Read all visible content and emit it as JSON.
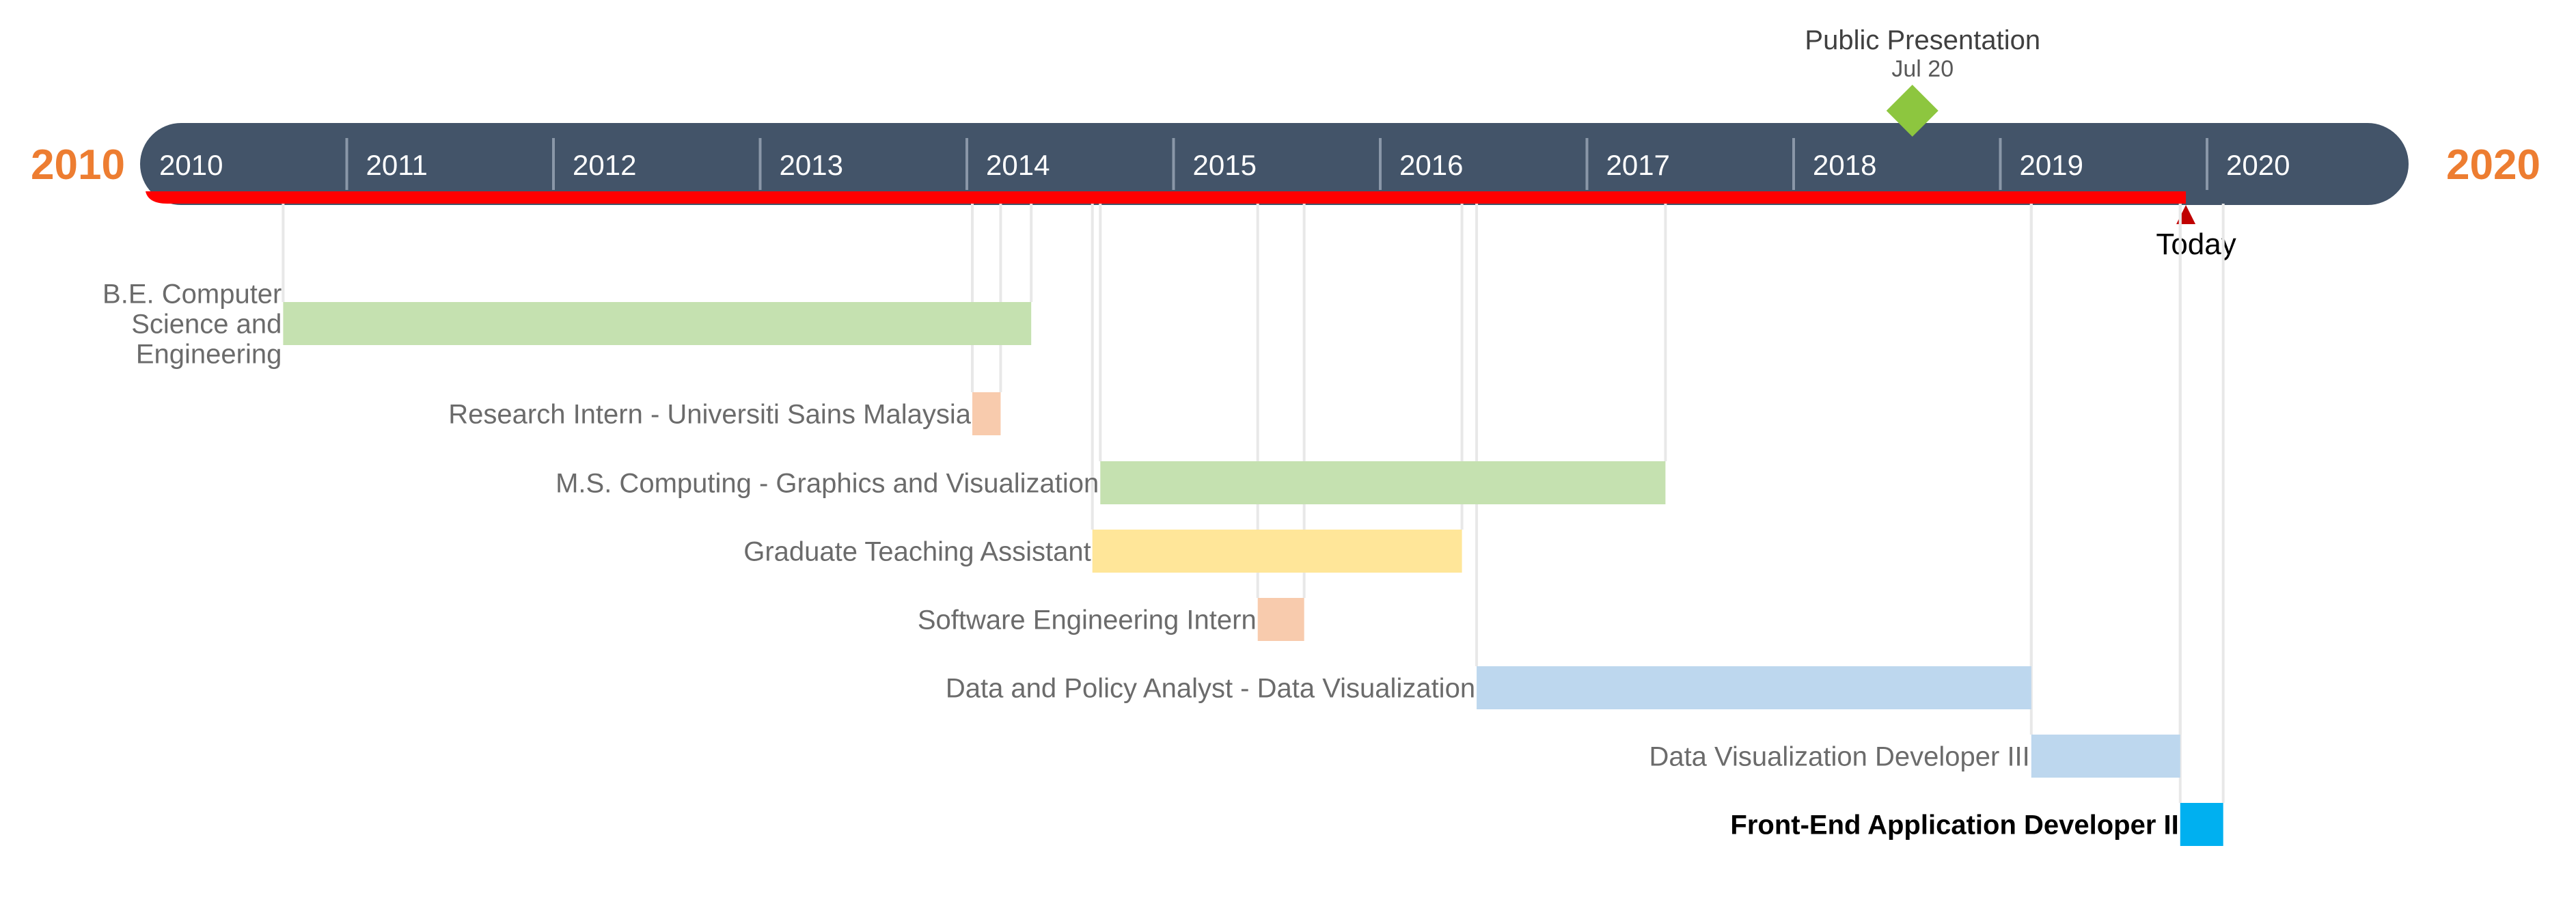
{
  "chart_data": {
    "type": "gantt-timeline",
    "start_year": 2010,
    "end_year": 2020,
    "start_label": "2010",
    "end_label": "2020",
    "years": [
      "2010",
      "2011",
      "2012",
      "2013",
      "2014",
      "2015",
      "2016",
      "2017",
      "2018",
      "2019",
      "2020"
    ],
    "today": {
      "date": "2019-11-15",
      "label": "Today"
    },
    "milestone": {
      "title": "Public Presentation",
      "date_label": "Jul 20",
      "date": "2018-07-20"
    },
    "tasks": [
      {
        "label": "B.E. Computer\nScience and\nEngineering",
        "start": "2010-09-01",
        "end": "2014-04-15",
        "color": "#c5e1b0",
        "bold": false
      },
      {
        "label": "Research Intern - Universiti Sains Malaysia",
        "start": "2014-01-01",
        "end": "2014-02-20",
        "color": "#f8cbad",
        "bold": false
      },
      {
        "label": "M.S. Computing - Graphics and Visualization",
        "start": "2014-08-15",
        "end": "2017-05-10",
        "color": "#c5e1b0",
        "bold": false
      },
      {
        "label": "Graduate Teaching Assistant",
        "start": "2014-08-01",
        "end": "2016-05-15",
        "color": "#ffe699",
        "bold": false
      },
      {
        "label": "Software Engineering Intern",
        "start": "2015-05-20",
        "end": "2015-08-10",
        "color": "#f8cbad",
        "bold": false
      },
      {
        "label": "Data and Policy Analyst - Data Visualization",
        "start": "2016-06-10",
        "end": "2019-02-15",
        "color": "#bdd7ee",
        "bold": false
      },
      {
        "label": "Data Visualization Developer III",
        "start": "2019-02-15",
        "end": "2019-11-05",
        "color": "#bdd7ee",
        "bold": false
      },
      {
        "label": "Front-End Application Developer II",
        "start": "2019-11-05",
        "end": "2020-01-20",
        "color": "#00b0f0",
        "bold": true
      }
    ],
    "colors": {
      "bar_bg": "#435469",
      "progress": "#ff0000",
      "edge_year": "#ed7d31",
      "milestone": "#8dc63f",
      "today_marker": "#c00000",
      "label_text": "#6b6b6b",
      "gridline": "#e8e8e8"
    }
  }
}
